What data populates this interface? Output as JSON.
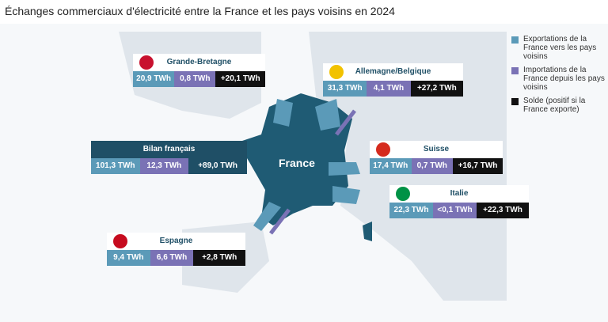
{
  "title": "Échanges commerciaux d'électricité entre la France et les pays voisins en 2024",
  "map_label": "France",
  "legend": [
    {
      "label": "Exportations de la France vers les pays voisins"
    },
    {
      "label": "Importations de la France depuis les pays voisins"
    },
    {
      "label": "Solde (positif si la France exporte)"
    }
  ],
  "boxes": [
    {
      "name": "Grande-Bretagne",
      "exports": "20,9 TWh",
      "imports": "0,8 TWh",
      "balance": "+20,1 TWh"
    },
    {
      "name": "Allemagne/Belgique",
      "exports": "31,3 TWh",
      "imports": "4,1 TWh",
      "balance": "+27,2 TWh"
    },
    {
      "name": "Bilan français",
      "exports": "101,3 TWh",
      "imports": "12,3 TWh",
      "balance": "+89,0 TWh"
    },
    {
      "name": "Suisse",
      "exports": "17,4 TWh",
      "imports": "0,7 TWh",
      "balance": "+16,7 TWh"
    },
    {
      "name": "Italie",
      "exports": "22,3 TWh",
      "imports": "<0,1 TWh",
      "balance": "+22,3 TWh"
    },
    {
      "name": "Espagne",
      "exports": "9,4 TWh",
      "imports": "6,6 TWh",
      "balance": "+2,8 TWh"
    }
  ]
}
